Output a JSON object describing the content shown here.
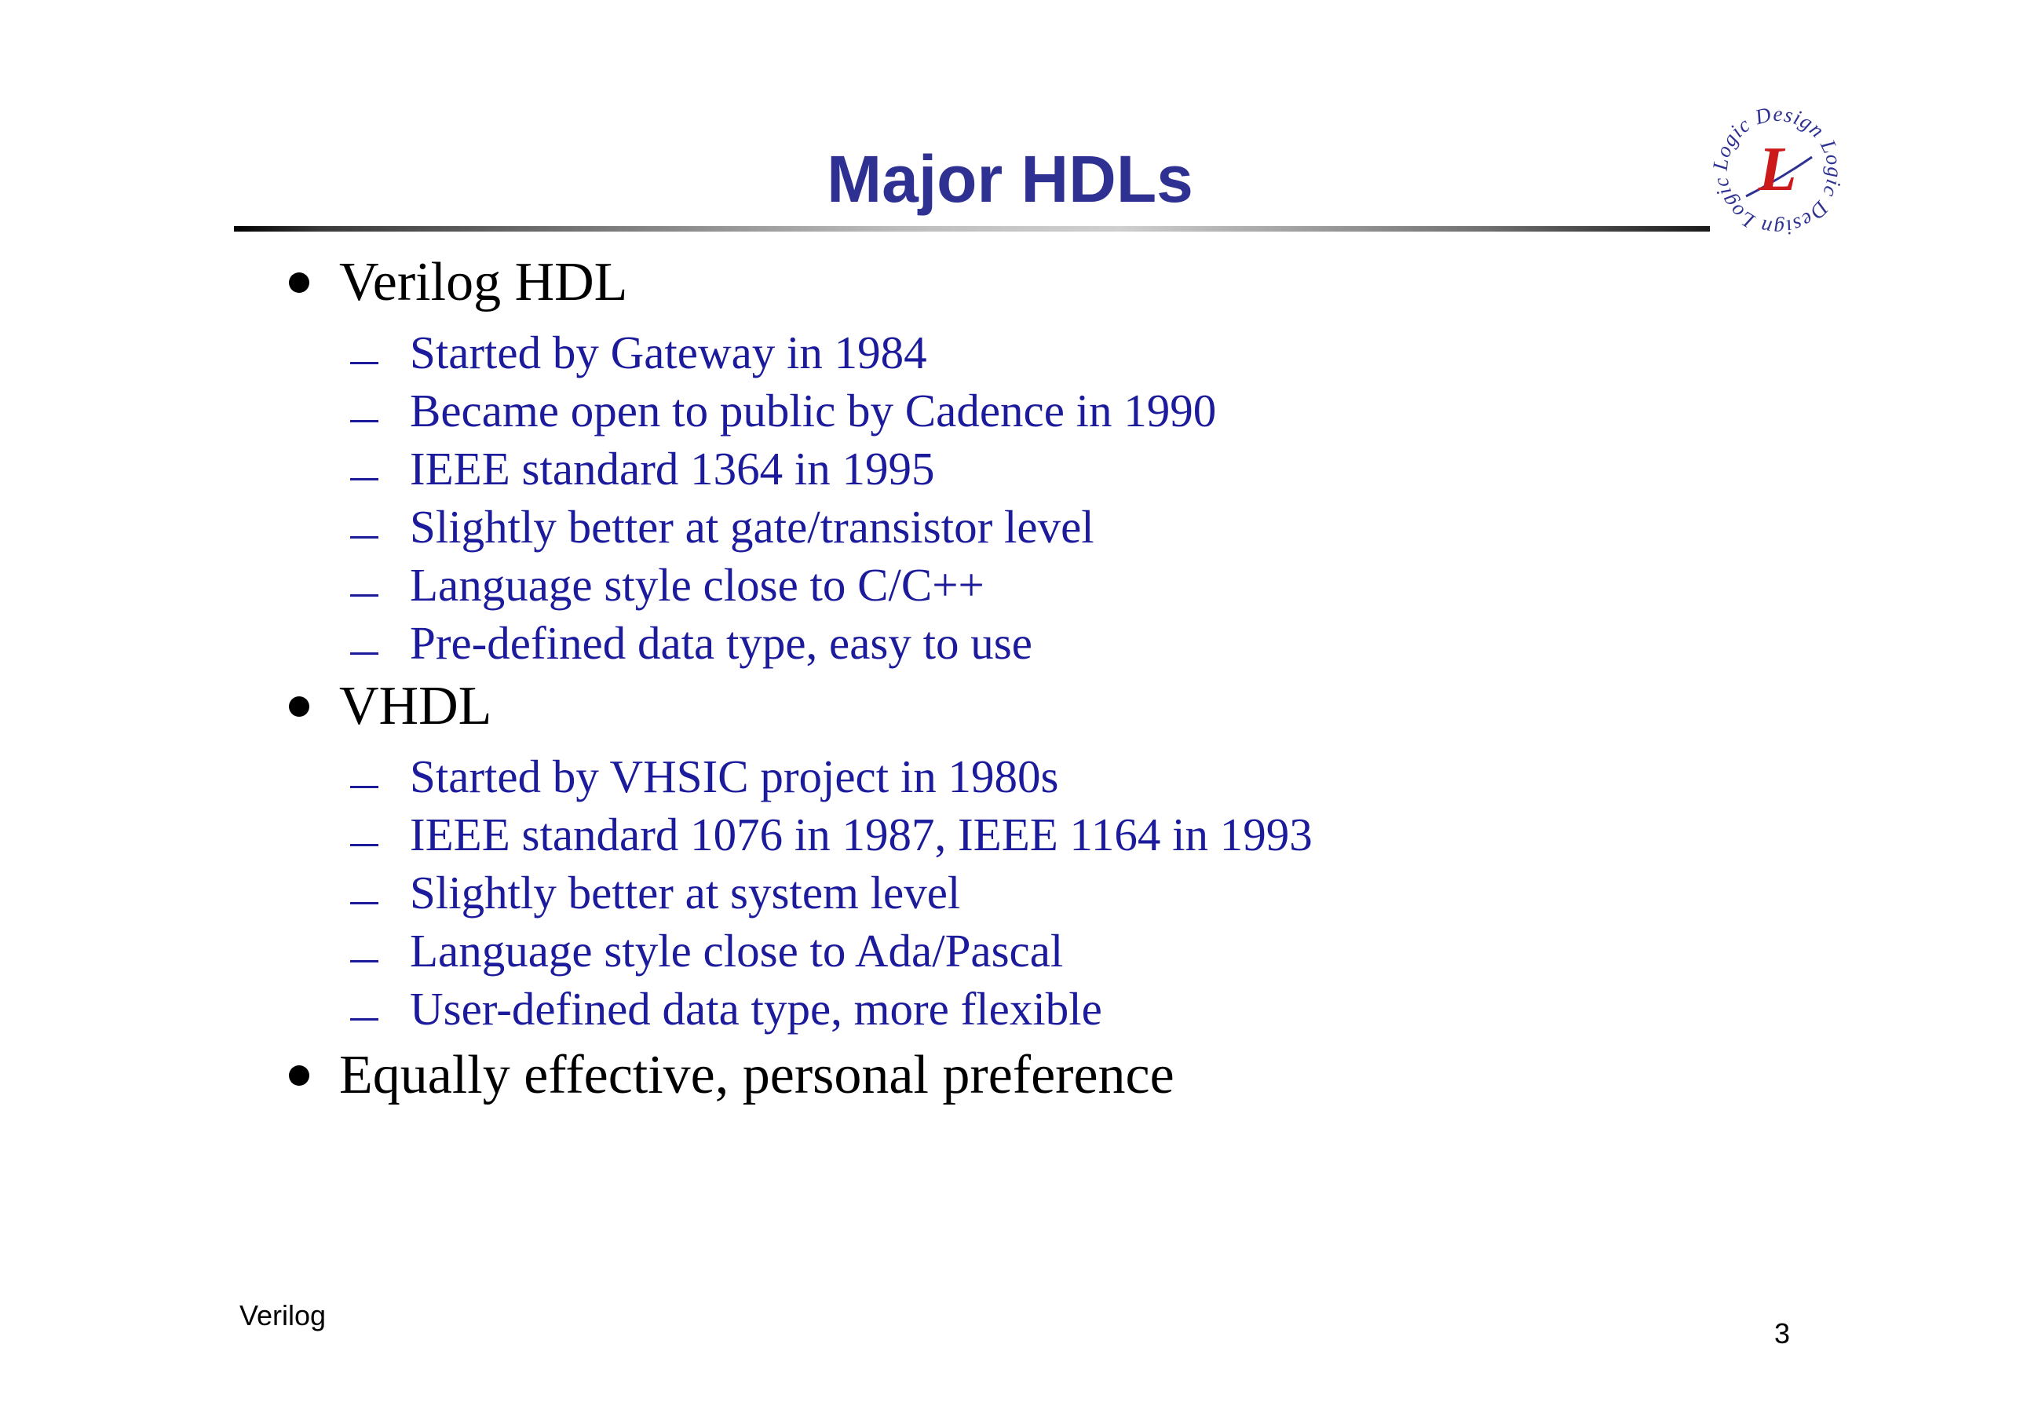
{
  "slide": {
    "title": "Major HDLs",
    "bullets": [
      {
        "text": "Verilog HDL",
        "subitems": [
          "Started by Gateway in 1984",
          "Became open to public by Cadence in 1990",
          "IEEE standard 1364 in 1995",
          "Slightly better at gate/transistor level",
          "Language style close to C/C++",
          "Pre-defined data type, easy to use"
        ]
      },
      {
        "text": "VHDL",
        "subitems": [
          "Started by VHSIC project in 1980s",
          "IEEE standard 1076 in 1987, IEEE 1164 in 1993",
          "Slightly better at system level",
          "Language style close to Ada/Pascal",
          "User-defined data type, more flexible"
        ]
      },
      {
        "text": "Equally effective, personal preference",
        "subitems": []
      }
    ]
  },
  "logo": {
    "letter": "L",
    "ring_text": "Logic Design Logic Design Logic Design",
    "colors": {
      "letter": "#cc1a1a",
      "ring": "#2e3192"
    }
  },
  "footer": {
    "left": "Verilog",
    "page": "3"
  }
}
